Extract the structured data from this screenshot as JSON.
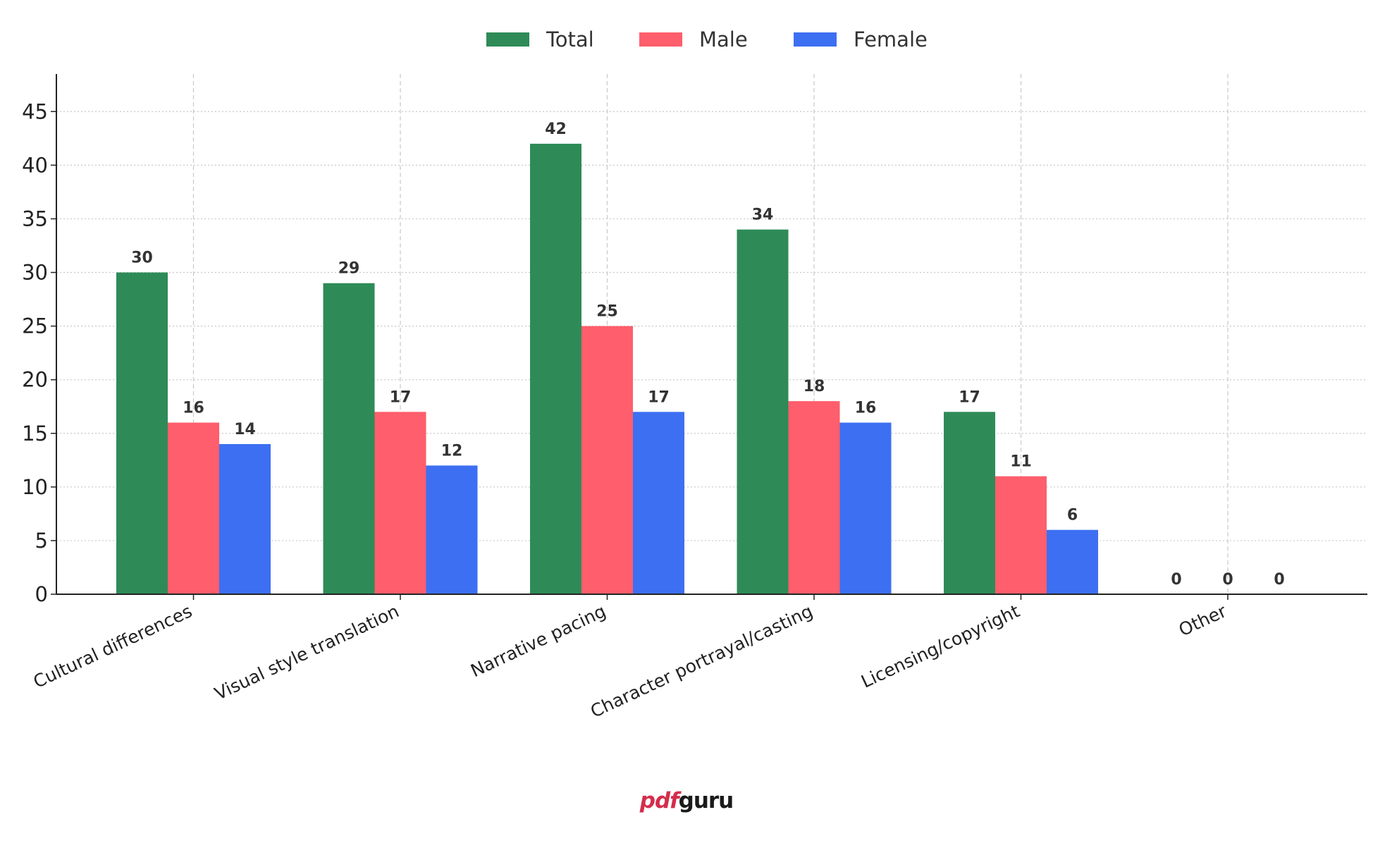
{
  "chart_data": {
    "type": "bar",
    "title": "",
    "xlabel": "",
    "ylabel": "",
    "ylim": [
      0,
      48.5
    ],
    "yticks": [
      0,
      5,
      10,
      15,
      20,
      25,
      30,
      35,
      40,
      45
    ],
    "grid": true,
    "legend_position": "top-center",
    "categories": [
      "Cultural differences",
      "Visual style translation",
      "Narrative pacing",
      "Character portrayal/casting",
      "Licensing/copyright",
      "Other"
    ],
    "series": [
      {
        "name": "Total",
        "color": "#2e8b57",
        "values": [
          30,
          29,
          42,
          34,
          17,
          0
        ]
      },
      {
        "name": "Male",
        "color": "#ff5e6c",
        "values": [
          16,
          17,
          25,
          18,
          11,
          0
        ]
      },
      {
        "name": "Female",
        "color": "#3d6ff2",
        "values": [
          14,
          12,
          17,
          16,
          6,
          0
        ]
      }
    ]
  },
  "watermark": {
    "part1": "pdf",
    "part2": "guru"
  }
}
